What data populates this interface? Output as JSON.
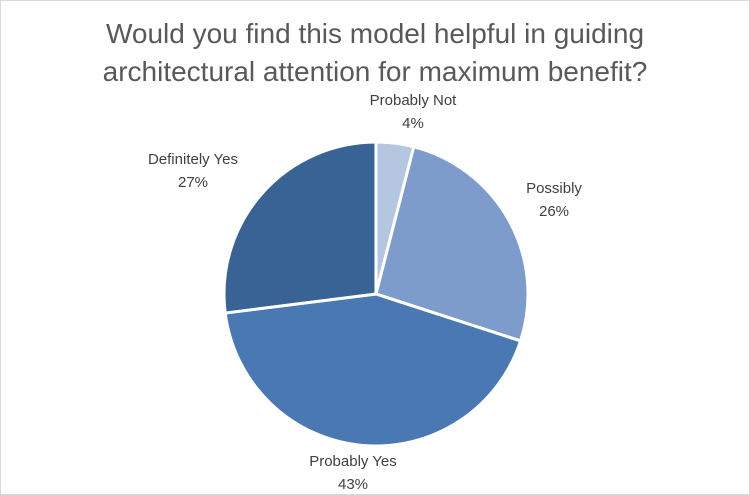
{
  "chart_data": {
    "type": "pie",
    "title_lines": [
      "Would you find this model helpful in guiding",
      "architectural attention for maximum benefit?"
    ],
    "slices": [
      {
        "label": "Probably Not",
        "value": 4,
        "value_text": "4%",
        "color": "#b4c6e0"
      },
      {
        "label": "Possibly",
        "value": 26,
        "value_text": "26%",
        "color": "#7e9ccb"
      },
      {
        "label": "Probably Yes",
        "value": 43,
        "value_text": "43%",
        "color": "#4a78b3"
      },
      {
        "label": "Definitely Yes",
        "value": 27,
        "value_text": "27%",
        "color": "#3a6395"
      }
    ],
    "legend": "none",
    "data_labels": "outside"
  }
}
